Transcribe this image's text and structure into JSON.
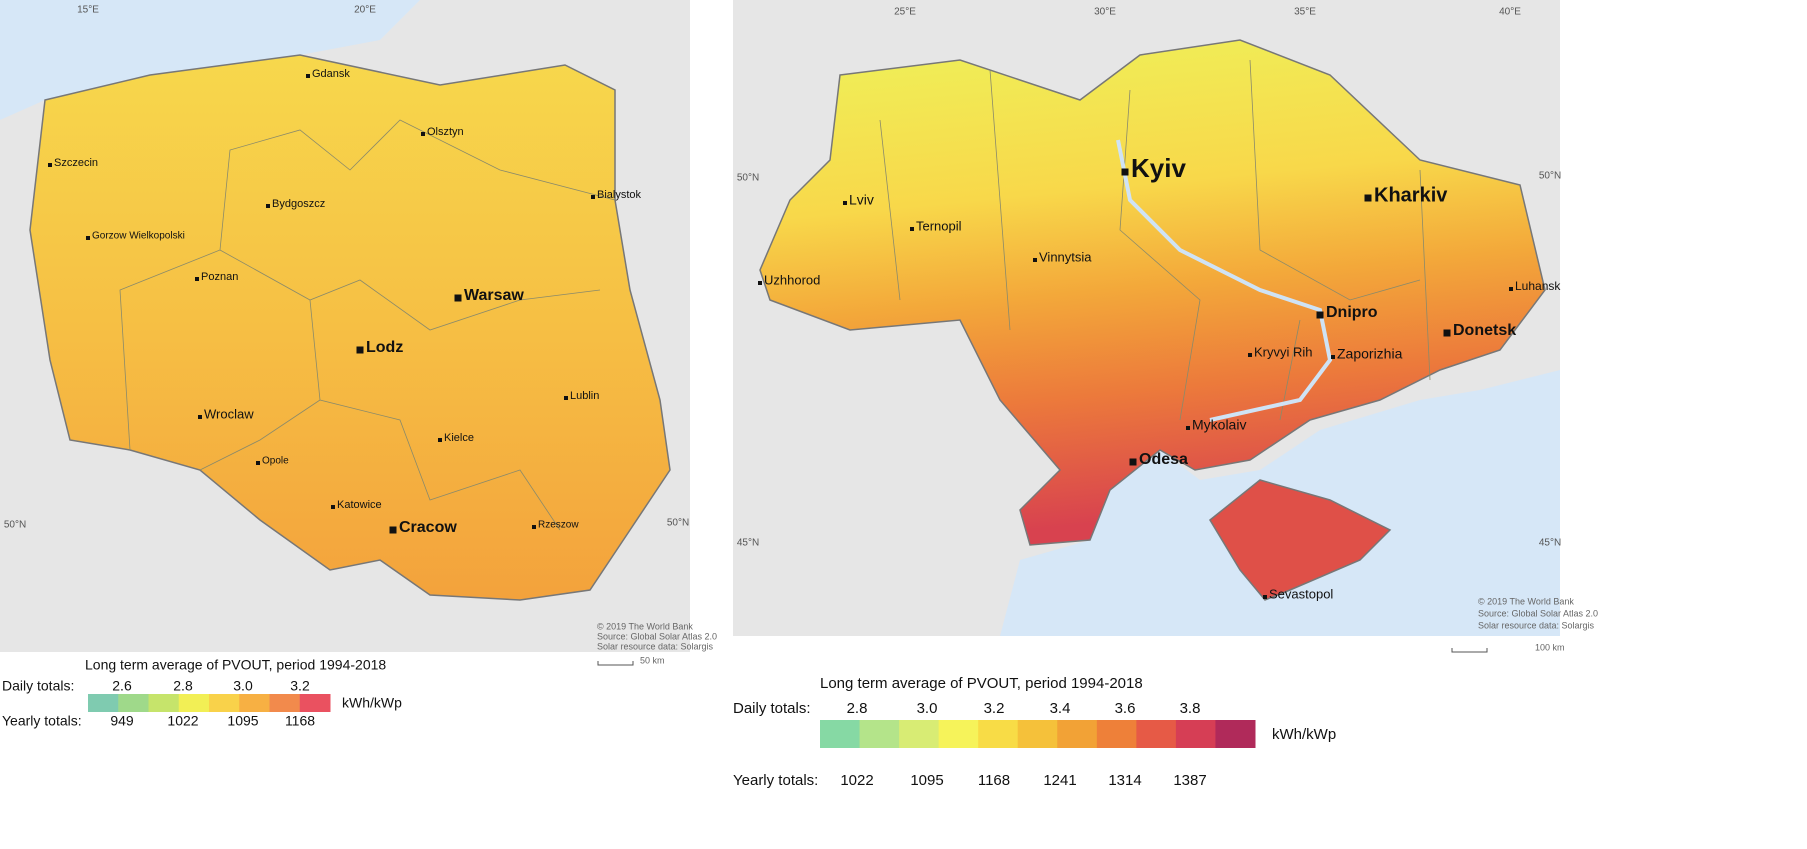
{
  "maps": [
    {
      "graticule_labels": [
        "15°E",
        "20°E",
        "50°N",
        "50°N"
      ],
      "cities": [
        "Gdansk",
        "Olsztyn",
        "Szczecin",
        "Bialystok",
        "Bydgoszcz",
        "Gorzow Wielkopolski",
        "Poznan",
        "Warsaw",
        "Lodz",
        "Lublin",
        "Wroclaw",
        "Kielce",
        "Opole",
        "Katowice",
        "Cracow",
        "Rzeszow"
      ],
      "attribution": [
        "© 2019 The World Bank",
        "Source: Global Solar Atlas 2.0",
        "Solar resource data: Solargis"
      ],
      "scale_label": "50 km",
      "legend": {
        "title": "Long term average of PVOUT, period 1994-2018",
        "daily_label": "Daily totals:",
        "daily_ticks": [
          2.6,
          2.8,
          {
            "value": 3,
            "label": "3.0"
          },
          3.2
        ],
        "yearly_label": "Yearly totals:",
        "yearly_ticks": [
          949,
          1022,
          1095,
          1168
        ],
        "unit": "kWh/kWp",
        "colors": [
          "#7fcbb0",
          "#9fd98a",
          "#c6e46b",
          "#f2ef55",
          "#f9d24a",
          "#f7b043",
          "#f28a4c",
          "#ea5160"
        ]
      }
    },
    {
      "graticule_labels": [
        "25°E",
        "30°E",
        "35°E",
        "40°E",
        "50°N",
        "50°N",
        "45°N",
        "45°N"
      ],
      "cities": [
        "Kyiv",
        "Kharkiv",
        "Lviv",
        "Ternopil",
        "Vinnytsia",
        "Uzhhorod",
        "Luhansk",
        "Dnipro",
        "Donetsk",
        "Kryvyi Rih",
        "Zaporizhia",
        "Mykolaiv",
        "Odesa",
        "Sevastopol"
      ],
      "attribution": [
        "© 2019 The World Bank",
        "Source: Global Solar Atlas 2.0",
        "Solar resource data: Solargis"
      ],
      "scale_label": "100 km",
      "legend": {
        "title": "Long term average of PVOUT, period 1994-2018",
        "daily_label": "Daily totals:",
        "daily_ticks": [
          2.8,
          {
            "value": 3,
            "label": "3.0"
          },
          3.2,
          3.4,
          3.6,
          3.8
        ],
        "yearly_label": "Yearly totals:",
        "yearly_ticks": [
          1022,
          1095,
          1168,
          1241,
          1314,
          1387
        ],
        "unit": "kWh/kWp",
        "colors": [
          "#86d9a4",
          "#b4e48a",
          "#d8ec74",
          "#f6f35a",
          "#f8dc46",
          "#f5c13a",
          "#f2a236",
          "#ee8039",
          "#e65a46",
          "#d63e55",
          "#b02a5a"
        ]
      }
    }
  ]
}
